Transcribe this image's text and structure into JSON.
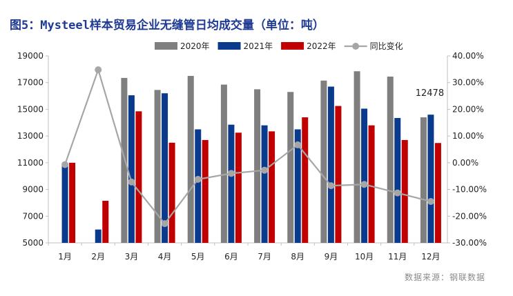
{
  "chart_data": {
    "type": "bar",
    "title": "图5：Mysteel样本贸易企业无缝管日均成交量（单位：吨）",
    "categories": [
      "1月",
      "2月",
      "3月",
      "4月",
      "5月",
      "6月",
      "7月",
      "8月",
      "9月",
      "10月",
      "11月",
      "12月"
    ],
    "series": [
      {
        "name": "2020年",
        "type": "bar",
        "axis": "left",
        "color": "#7f7f7f",
        "values": [
          null,
          null,
          17350,
          16450,
          17500,
          16850,
          16500,
          16300,
          17150,
          17850,
          17450,
          14400
        ]
      },
      {
        "name": "2021年",
        "type": "bar",
        "axis": "left",
        "color": "#0a3a8c",
        "values": [
          10800,
          6000,
          16050,
          16200,
          13500,
          13850,
          13800,
          13500,
          16700,
          15050,
          14350,
          14600
        ]
      },
      {
        "name": "2022年",
        "type": "bar",
        "axis": "left",
        "color": "#c00000",
        "values": [
          11000,
          8150,
          14850,
          12500,
          12700,
          13250,
          13350,
          14400,
          15250,
          13800,
          12700,
          12478
        ]
      },
      {
        "name": "同比变化",
        "type": "line",
        "axis": "right",
        "color": "#a6a6a6",
        "values": [
          -0.007,
          0.348,
          -0.072,
          -0.228,
          -0.062,
          -0.04,
          -0.028,
          0.067,
          -0.086,
          -0.081,
          -0.113,
          -0.145
        ]
      }
    ],
    "y_left": {
      "min": 5000,
      "max": 19000,
      "step": 2000,
      "ticks": [
        "5000",
        "7000",
        "9000",
        "11000",
        "13000",
        "15000",
        "17000",
        "19000"
      ]
    },
    "y_right": {
      "min": -0.3,
      "max": 0.4,
      "step": 0.1,
      "ticks": [
        "-30.00%",
        "-20.00%",
        "-10.00%",
        "0.00%",
        "10.00%",
        "20.00%",
        "30.00%",
        "40.00%"
      ]
    },
    "annotation": {
      "text": "12478",
      "category": "12月",
      "series": "2022年"
    },
    "legend": {
      "position": "top"
    },
    "grid": false
  },
  "source": "数据来源：钢联数据",
  "colors": {
    "title": "#1f3a93"
  }
}
